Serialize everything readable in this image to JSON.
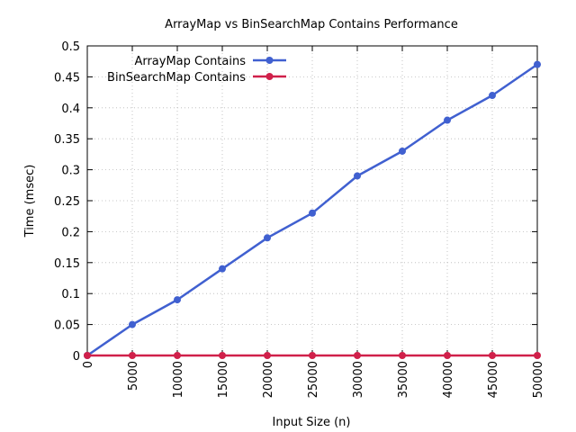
{
  "chart_data": {
    "type": "line",
    "title": "ArrayMap vs BinSearchMap Contains Performance",
    "xlabel": "Input Size (n)",
    "ylabel": "Time (msec)",
    "x": [
      0,
      5000,
      10000,
      15000,
      20000,
      25000,
      30000,
      35000,
      40000,
      45000,
      50000
    ],
    "xticks": [
      "0",
      "5000",
      "10000",
      "15000",
      "20000",
      "25000",
      "30000",
      "35000",
      "40000",
      "45000",
      "50000"
    ],
    "yticks": [
      "0",
      "0.05",
      "0.1",
      "0.15",
      "0.2",
      "0.25",
      "0.3",
      "0.35",
      "0.4",
      "0.45",
      "0.5"
    ],
    "xlim": [
      0,
      50000
    ],
    "ylim": [
      0,
      0.5
    ],
    "grid": true,
    "legend_position": "top-left",
    "series": [
      {
        "name": "ArrayMap Contains",
        "color": "#4060d0",
        "values": [
          0,
          0.05,
          0.09,
          0.14,
          0.19,
          0.23,
          0.29,
          0.33,
          0.38,
          0.42,
          0.47
        ]
      },
      {
        "name": "BinSearchMap Contains",
        "color": "#d0204a",
        "values": [
          0,
          0,
          0,
          0,
          0,
          0,
          0,
          0,
          0,
          0,
          0
        ]
      }
    ]
  }
}
